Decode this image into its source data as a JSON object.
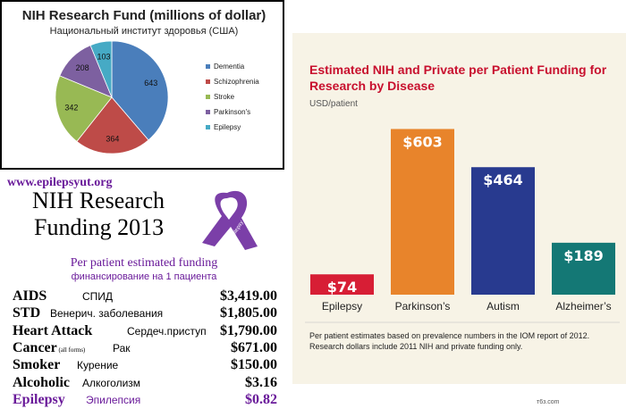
{
  "chart_data": [
    {
      "type": "pie",
      "title": "NIH Research Fund (millions of dollar)",
      "subtitle": "Национальный институт здоровья (США)",
      "legend": "right",
      "slices": [
        {
          "name": "Dementia",
          "value": 643,
          "color": "#4a7ebb"
        },
        {
          "name": "Schizophrenia",
          "value": 364,
          "color": "#be4b48"
        },
        {
          "name": "Stroke",
          "value": 342,
          "color": "#98b954"
        },
        {
          "name": "Parkinson's",
          "value": 208,
          "color": "#7d60a0"
        },
        {
          "name": "Epilepsy",
          "value": 103,
          "color": "#46aac5"
        }
      ]
    },
    {
      "type": "bar",
      "title": "Estimated NIH and Private per Patient Funding for Research by Disease",
      "ylabel": "USD/patient",
      "categories": [
        "Epilepsy",
        "Parkinson’s",
        "Autism",
        "Alzheimer’s"
      ],
      "values": [
        74,
        603,
        464,
        189
      ],
      "value_labels": [
        "$74",
        "$603",
        "$464",
        "$189"
      ],
      "colors": [
        "#d71e35",
        "#e8842b",
        "#283a8f",
        "#147875"
      ],
      "ylim": [
        0,
        650
      ],
      "note": "Per patient estimates based on prevalence numbers in the IOM report of 2012. Research dollars include 2011 NIH and private funding only.",
      "credit": "т6з.com"
    },
    {
      "type": "table",
      "source": "www.epilepsyut.org",
      "title_line1": "NIH Research",
      "title_line2": "Funding 2013",
      "ribbon_text": "Epilepsy Awareness",
      "subtitle": "Per patient estimated funding",
      "subtitle_ru": "финансирование на 1 пациента",
      "rows": [
        {
          "name": "AIDS",
          "note": "",
          "name_ru": "СПИД",
          "amount": "$3,419.00"
        },
        {
          "name": "STD",
          "note": "",
          "name_ru": "Венерич. заболевания",
          "amount": "$1,805.00"
        },
        {
          "name": "Heart Attack",
          "note": "",
          "name_ru": "Сердеч.приступ",
          "amount": "$1,790.00"
        },
        {
          "name": "Cancer",
          "note": "(all forms)",
          "name_ru": "Рак",
          "amount": "$671.00"
        },
        {
          "name": "Smoker",
          "note": "",
          "name_ru": "Курение",
          "amount": "$150.00"
        },
        {
          "name": "Alcoholic",
          "note": "",
          "name_ru": "Алкоголизм",
          "amount": "$3.16"
        },
        {
          "name": "Epilepsy",
          "note": "",
          "name_ru": "Эпилепсия",
          "amount": "$0.82"
        }
      ]
    }
  ]
}
